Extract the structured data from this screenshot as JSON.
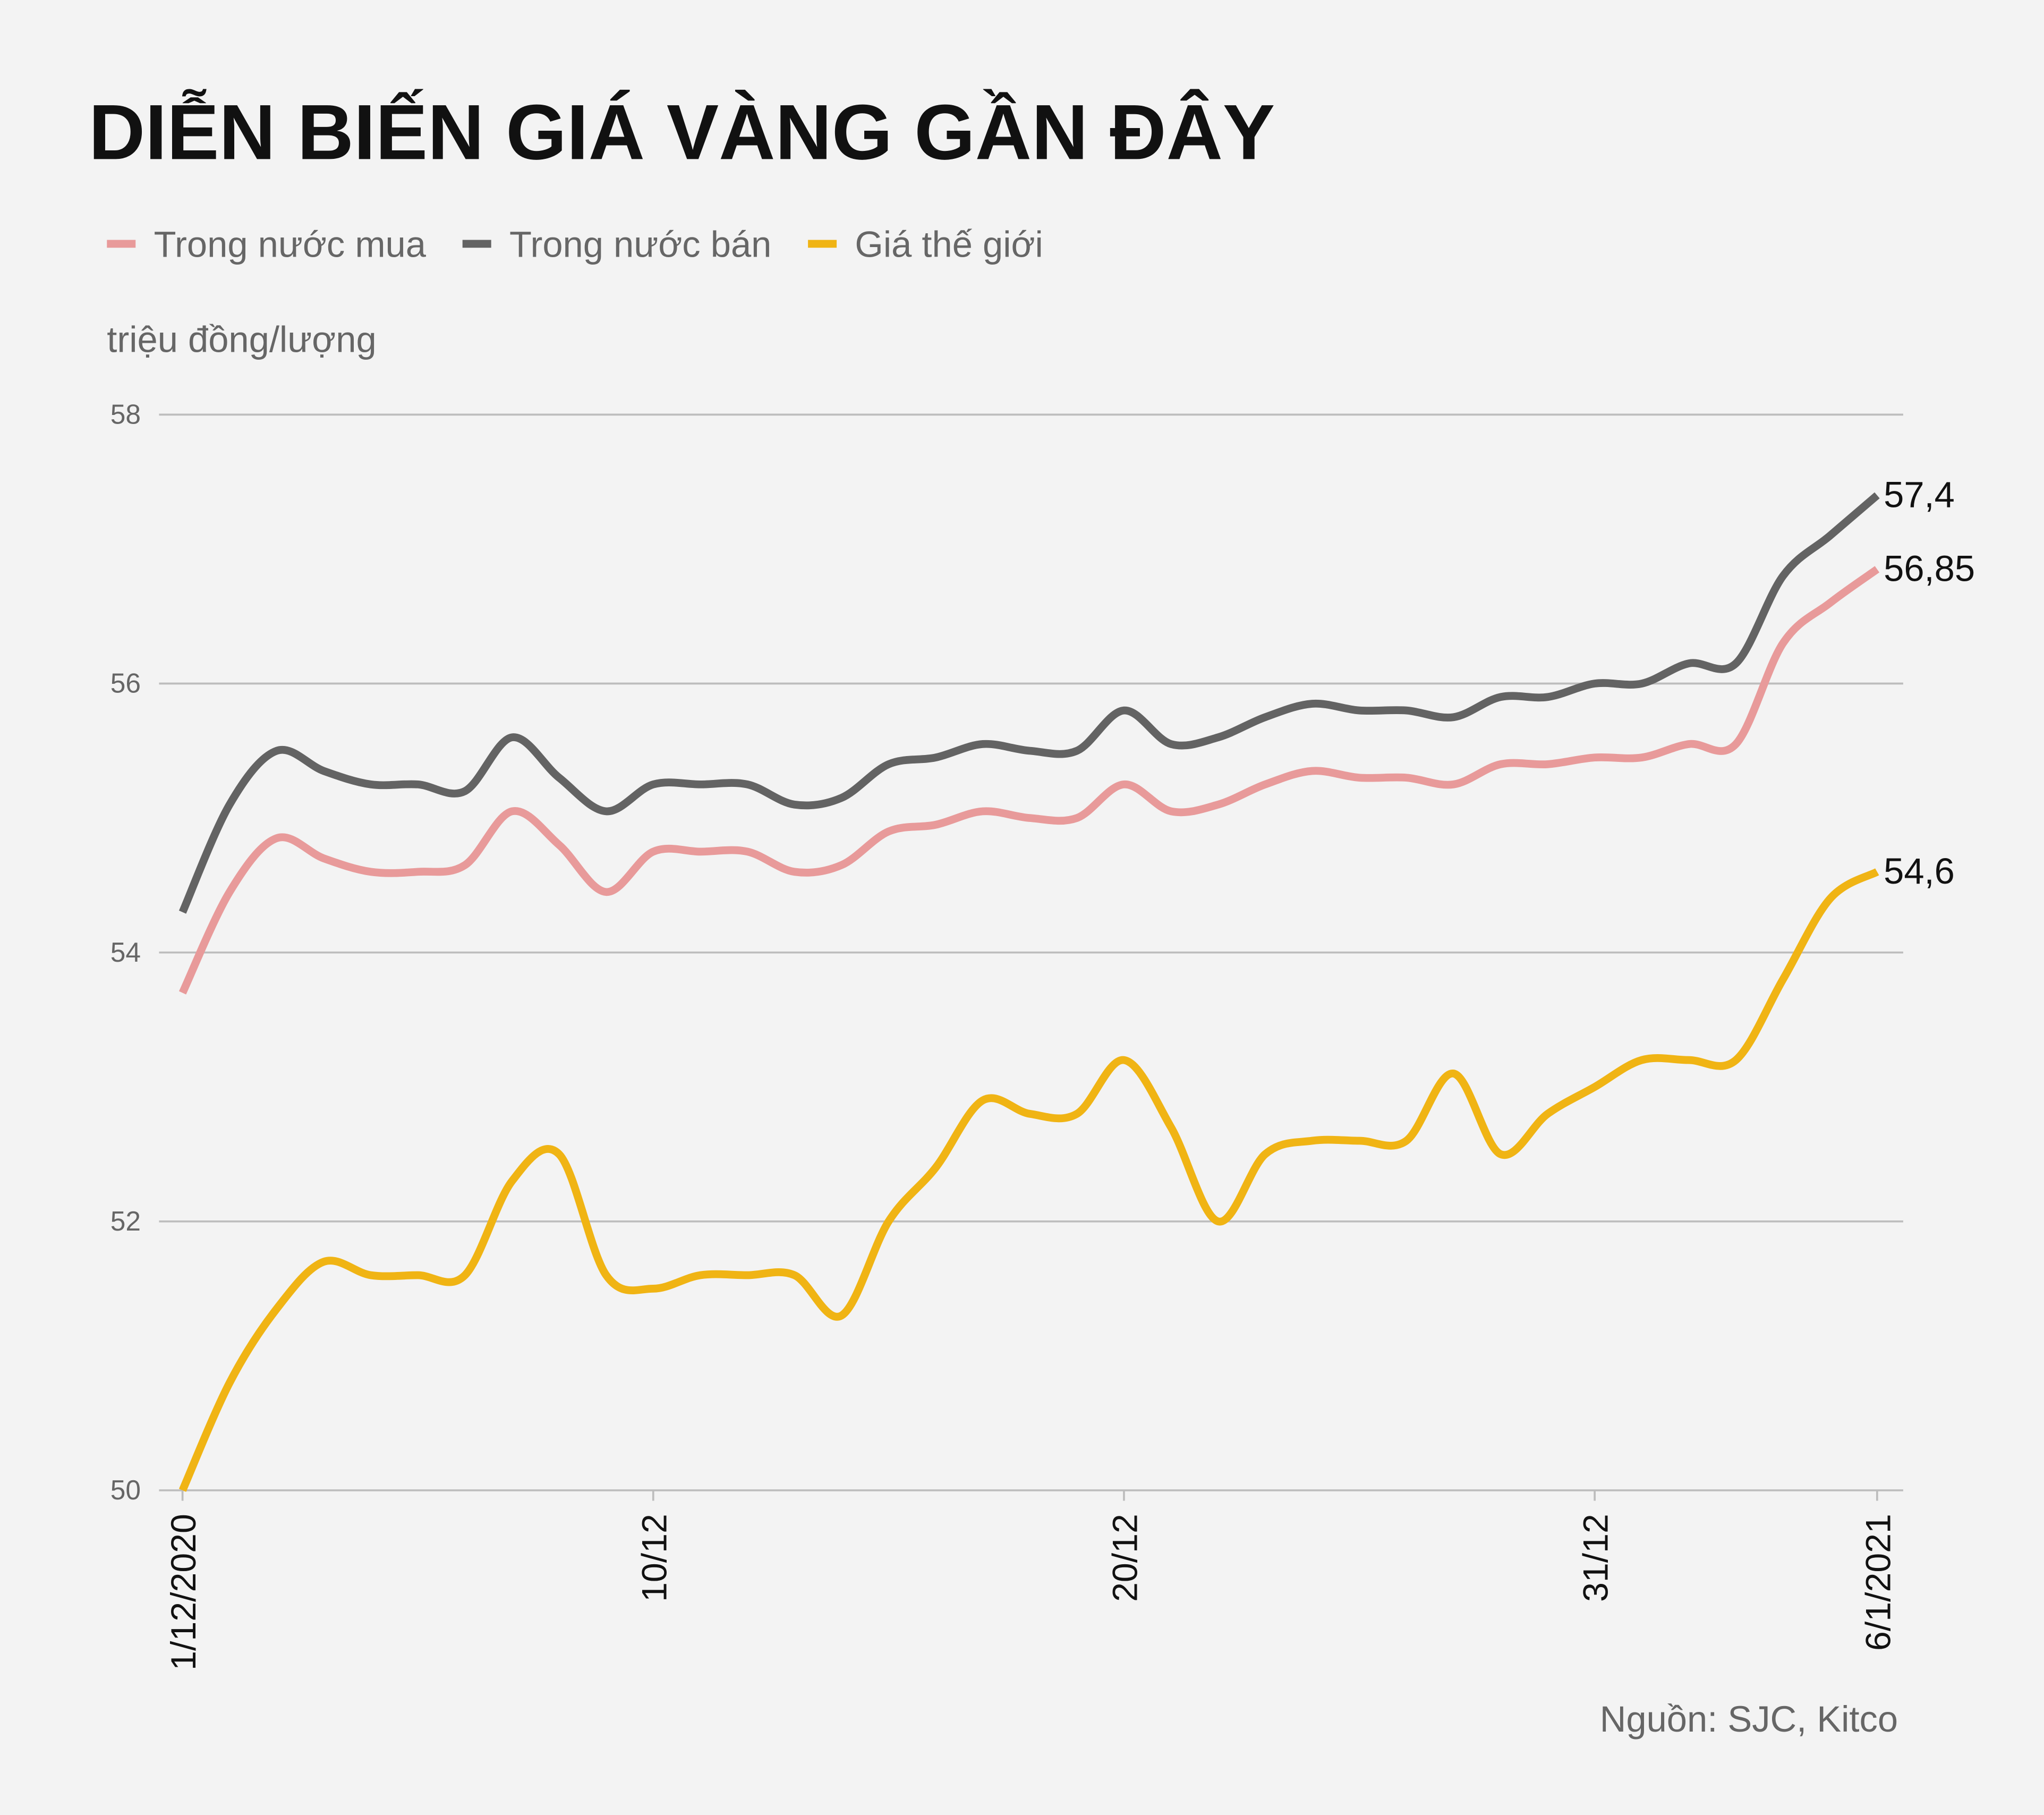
{
  "chart_data": {
    "type": "line",
    "title": "DIỄN BIẾN GIÁ VÀNG GẦN ĐÂY",
    "y_label": "triệu đồng/lượng",
    "source": "Nguồn: SJC, Kitco",
    "categories": [
      "1/12/2020",
      null,
      null,
      null,
      null,
      null,
      null,
      null,
      null,
      null,
      "10/12",
      null,
      null,
      null,
      null,
      null,
      null,
      null,
      null,
      null,
      "20/12",
      null,
      null,
      null,
      null,
      null,
      null,
      null,
      null,
      null,
      "31/12",
      null,
      null,
      null,
      null,
      null,
      "6/1/2021"
    ],
    "ylim": [
      50,
      58
    ],
    "yticks": [
      50,
      52,
      54,
      56,
      58
    ],
    "grid": true,
    "legend": "top",
    "series": [
      {
        "name": "Trong nước mua",
        "color": "#e89a9a",
        "values": [
          53.7,
          54.45,
          54.85,
          54.7,
          54.6,
          54.6,
          54.65,
          55.05,
          54.8,
          54.45,
          54.75,
          54.75,
          54.75,
          54.6,
          54.65,
          54.9,
          54.95,
          55.05,
          55.0,
          55.0,
          55.25,
          55.05,
          55.1,
          55.25,
          55.35,
          55.3,
          55.3,
          55.25,
          55.4,
          55.4,
          55.45,
          55.45,
          55.55,
          55.55,
          56.3,
          56.6,
          56.85
        ],
        "value_labels": [
          null,
          null,
          null,
          null,
          null,
          null,
          null,
          null,
          null,
          null,
          null,
          null,
          null,
          null,
          null,
          null,
          null,
          null,
          null,
          null,
          null,
          null,
          null,
          null,
          null,
          null,
          null,
          null,
          null,
          null,
          null,
          null,
          null,
          null,
          null,
          null,
          "56,85"
        ]
      },
      {
        "name": "Trong nước bán",
        "color": "#636363",
        "values": [
          54.3,
          55.1,
          55.5,
          55.35,
          55.25,
          55.25,
          55.2,
          55.6,
          55.3,
          55.05,
          55.25,
          55.25,
          55.25,
          55.1,
          55.15,
          55.4,
          55.45,
          55.55,
          55.5,
          55.5,
          55.8,
          55.55,
          55.6,
          55.75,
          55.85,
          55.8,
          55.8,
          55.75,
          55.9,
          55.9,
          56.0,
          56.0,
          56.15,
          56.15,
          56.8,
          57.1,
          57.4
        ],
        "value_labels": [
          null,
          null,
          null,
          null,
          null,
          null,
          null,
          null,
          null,
          null,
          null,
          null,
          null,
          null,
          null,
          null,
          null,
          null,
          null,
          null,
          null,
          null,
          null,
          null,
          null,
          null,
          null,
          null,
          null,
          null,
          null,
          null,
          null,
          null,
          null,
          null,
          "57,4"
        ]
      },
      {
        "name": "Giá thế giới",
        "color": "#f0b414",
        "values": [
          50.0,
          50.8,
          51.35,
          51.7,
          51.6,
          51.6,
          51.6,
          52.3,
          52.5,
          51.6,
          51.5,
          51.6,
          51.6,
          51.6,
          51.3,
          52.0,
          52.4,
          52.9,
          52.8,
          52.8,
          53.2,
          52.7,
          52.0,
          52.5,
          52.6,
          52.6,
          52.6,
          53.1,
          52.5,
          52.8,
          53.0,
          53.2,
          53.2,
          53.2,
          53.8,
          54.4,
          54.6
        ],
        "value_labels": [
          null,
          null,
          null,
          null,
          null,
          null,
          null,
          null,
          null,
          null,
          null,
          null,
          null,
          null,
          null,
          null,
          null,
          null,
          null,
          null,
          null,
          null,
          null,
          null,
          null,
          null,
          null,
          null,
          null,
          null,
          null,
          null,
          null,
          null,
          null,
          null,
          "54,6"
        ]
      }
    ]
  }
}
